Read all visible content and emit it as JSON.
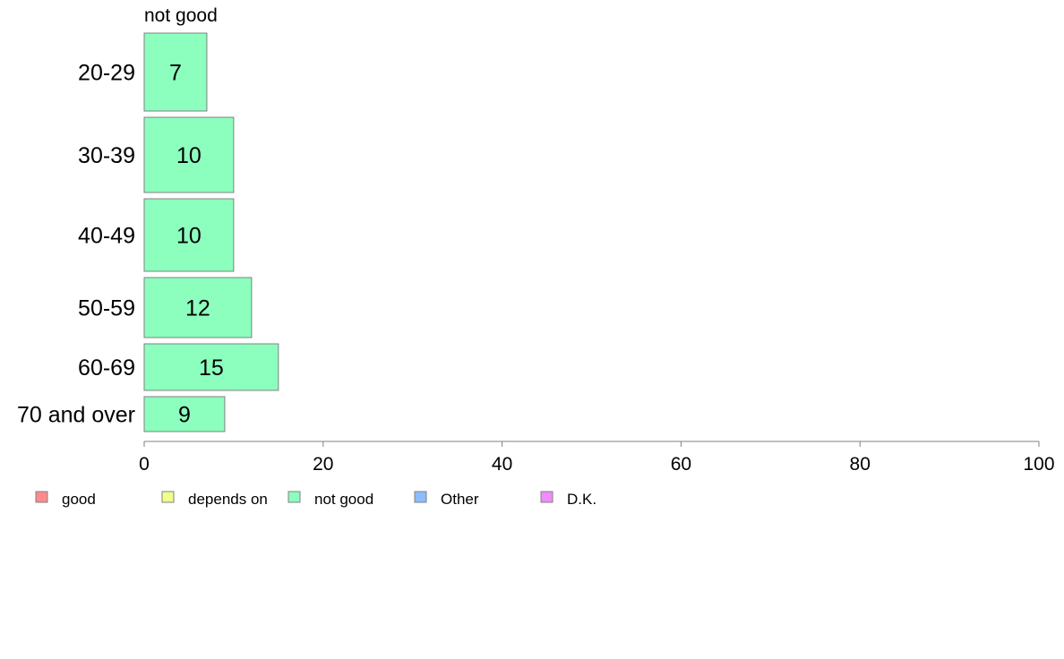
{
  "chart_data": {
    "type": "bar",
    "orientation": "horizontal",
    "series_title": "not good",
    "categories": [
      "20-29",
      "30-39",
      "40-49",
      "50-59",
      "60-69",
      "70 and over"
    ],
    "series": [
      {
        "name": "not good",
        "values": [
          7,
          10,
          10,
          12,
          15,
          9
        ],
        "color": "#8cffbe"
      }
    ],
    "xlim": [
      0,
      100
    ],
    "xticks": [
      0,
      20,
      40,
      60,
      80,
      100
    ],
    "xlabel": "",
    "ylabel": "",
    "grid": false,
    "legend": {
      "placement": "bottom-left",
      "items": [
        {
          "label": "good",
          "color": "#ff8c8c"
        },
        {
          "label": "depends on",
          "color": "#f0ff8c"
        },
        {
          "label": "not good",
          "color": "#8cffbe"
        },
        {
          "label": "Other",
          "color": "#8cbeff"
        },
        {
          "label": "D.K.",
          "color": "#f08cff"
        }
      ]
    },
    "bar_stroke": "#808080",
    "axis_color": "#808080"
  }
}
